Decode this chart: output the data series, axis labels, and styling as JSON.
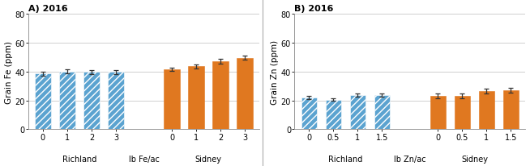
{
  "panel_A": {
    "title": "A) 2016",
    "ylabel": "Grain Fe (ppm)",
    "xlabel_center": "lb Fe/ac",
    "ylim": [
      0,
      80
    ],
    "yticks": [
      0,
      20,
      40,
      60,
      80
    ],
    "richland_labels": [
      "0",
      "1",
      "2",
      "3"
    ],
    "sidney_labels": [
      "0",
      "1",
      "2",
      "3"
    ],
    "richland_values": [
      38.5,
      40.0,
      39.5,
      39.5
    ],
    "richland_errors": [
      1.5,
      1.5,
      1.5,
      1.5
    ],
    "sidney_values": [
      41.5,
      43.5,
      47.0,
      49.5
    ],
    "sidney_errors": [
      1.2,
      1.5,
      1.5,
      1.2
    ],
    "richland_color": "#5BA3D0",
    "sidney_color": "#E07820",
    "hatch": "////"
  },
  "panel_B": {
    "title": "B) 2016",
    "ylabel": "Grain Zn (ppm)",
    "xlabel_center": "lb Zn/ac",
    "ylim": [
      0,
      80
    ],
    "yticks": [
      0,
      20,
      40,
      60,
      80
    ],
    "richland_labels": [
      "0",
      "0.5",
      "1",
      "1.5"
    ],
    "sidney_labels": [
      "0",
      "0.5",
      "1",
      "1.5"
    ],
    "richland_values": [
      22.0,
      20.5,
      23.5,
      23.5
    ],
    "richland_errors": [
      1.2,
      1.0,
      1.2,
      1.2
    ],
    "sidney_values": [
      23.0,
      23.0,
      26.5,
      27.0
    ],
    "sidney_errors": [
      1.5,
      1.5,
      1.5,
      1.5
    ],
    "richland_color": "#5BA3D0",
    "sidney_color": "#E07820",
    "hatch": "////"
  },
  "background_color": "#ffffff",
  "grid_color": "#C8C8C8",
  "site_label_richland": "Richland",
  "site_label_sidney": "Sidney"
}
